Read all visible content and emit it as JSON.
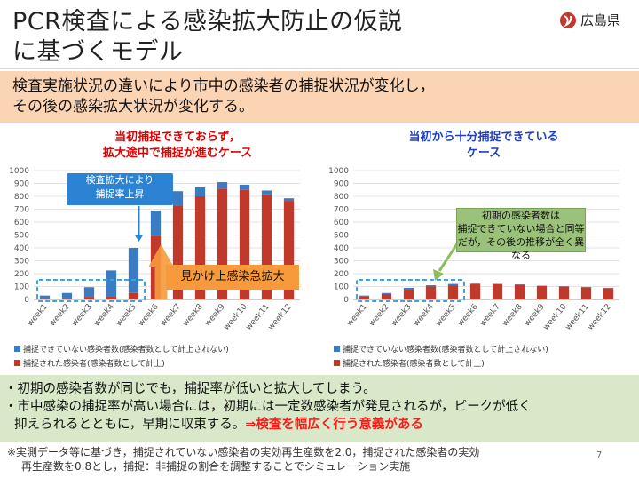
{
  "title": {
    "line1": "PCR検査による感染拡大防止の仮説",
    "line2": "に基づくモデル"
  },
  "logo": {
    "text": "広島県",
    "icon": "hiroshima-prefecture-emblem-icon"
  },
  "banner": {
    "line1": "検査実施状況の違いにより市中の感染者の捕捉状況が変化し，",
    "line2": "その後の感染拡大状況が変化する。"
  },
  "colors": {
    "uncaptured": "#3a7cc4",
    "captured": "#c0392b",
    "banner": "#fbd4b4",
    "bottom": "#d8e8c8"
  },
  "chart_data": [
    {
      "type": "bar",
      "stacked": true,
      "title_line1": "当初捕捉できておらず，",
      "title_line2": "拡大途中で捕捉が進むケース",
      "categories": [
        "week1",
        "week2",
        "week3",
        "week4",
        "week5",
        "week6",
        "week7",
        "week8",
        "week9",
        "week10",
        "week11",
        "week12"
      ],
      "series": [
        {
          "name": "捕捉できていない感染者数(感染者数として計上されない)",
          "values": [
            25,
            45,
            75,
            200,
            350,
            200,
            110,
            70,
            50,
            40,
            30,
            20
          ]
        },
        {
          "name": "捕捉された感染者(感染者数として計上)",
          "values": [
            5,
            5,
            20,
            25,
            50,
            490,
            730,
            800,
            860,
            850,
            815,
            765
          ]
        }
      ],
      "ylim": [
        0,
        1000
      ],
      "yticks": [
        "0",
        "100",
        "200",
        "300",
        "400",
        "500",
        "600",
        "700",
        "800",
        "900",
        "1000"
      ],
      "grid": true
    },
    {
      "type": "bar",
      "stacked": true,
      "title_line1": "当初から十分捕捉できている",
      "title_line2": "ケース",
      "categories": [
        "week1",
        "week2",
        "week3",
        "week4",
        "week5",
        "week6",
        "week7",
        "week8",
        "week9",
        "week10",
        "week11",
        "week12"
      ],
      "series": [
        {
          "name": "捕捉できていない感染者数(感染者数として計上されない)",
          "values": [
            5,
            8,
            10,
            10,
            10,
            5,
            3,
            2,
            2,
            2,
            2,
            2
          ]
        },
        {
          "name": "捕捉された感染者(感染者数として計上)",
          "values": [
            25,
            42,
            80,
            100,
            110,
            118,
            118,
            115,
            105,
            100,
            95,
            88
          ]
        }
      ],
      "ylim": [
        0,
        1000
      ],
      "yticks": [
        "0",
        "100",
        "200",
        "300",
        "400",
        "500",
        "600",
        "700",
        "800",
        "900",
        "1000"
      ],
      "grid": true
    }
  ],
  "callouts": {
    "blue": {
      "line1": "検査拡大により",
      "line2": "捕捉率上昇"
    },
    "orange": "見かけ上感染急拡大",
    "green": {
      "line1": "初期の感染者数は",
      "line2": "捕捉できていない場合と同等",
      "line3": "だが，その後の推移が全く異なる"
    }
  },
  "legend": {
    "uncaptured": "捕捉できていない感染者数(感染者数として計上されない)",
    "captured": "捕捉された感染者(感染者数として計上)"
  },
  "bottom": {
    "line1": "・初期の感染者数が同じでも，捕捉率が低いと拡大してしまう。",
    "line2": "・市中感染の捕捉率が高い場合には，初期には一定数感染者が発見されるが，ピークが低く",
    "line3_plain": "抑えられるとともに，早期に収束する。",
    "line3_emph": "⇒検査を幅広く行う意義がある"
  },
  "footnote": {
    "line1": "※実測データ等に基づき，捕捉されていない感染者の実効再生産数を2.0，捕捉された感染者の実効",
    "line2": "再生産数を0.8とし，捕捉：非捕捉の割合を調整することでシミュレーション実施"
  },
  "page_number": "7"
}
